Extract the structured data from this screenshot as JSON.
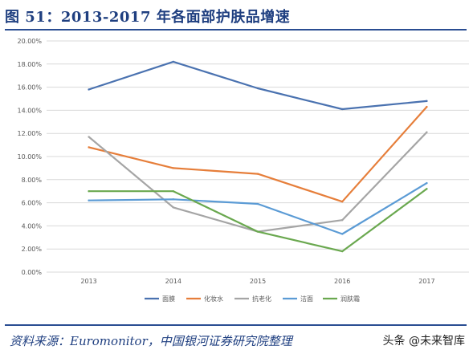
{
  "title": "图 51：2013-2017 年各面部护肤品增速",
  "source_note": "资料来源：Euromonitor，中国银河证券研究院整理",
  "watermark": "头条 @未来智库",
  "chart_data": {
    "type": "line",
    "title": "",
    "xlabel": "",
    "ylabel": "",
    "x": [
      "2013",
      "2014",
      "2015",
      "2016",
      "2017"
    ],
    "ylim": [
      0,
      20
    ],
    "y_ticks": [
      0,
      2,
      4,
      6,
      8,
      10,
      12,
      14,
      16,
      18,
      20
    ],
    "y_tick_labels": [
      "0.00%",
      "2.00%",
      "4.00%",
      "6.00%",
      "8.00%",
      "10.00%",
      "12.00%",
      "14.00%",
      "16.00%",
      "18.00%",
      "20.00%"
    ],
    "grid": true,
    "legend_position": "bottom",
    "series": [
      {
        "name": "面膜",
        "color": "#4a72b0",
        "values": [
          15.8,
          18.2,
          15.9,
          14.1,
          14.8
        ]
      },
      {
        "name": "化妆水",
        "color": "#e67e3a",
        "values": [
          10.8,
          9.0,
          8.5,
          6.1,
          14.3
        ]
      },
      {
        "name": "抗老化",
        "color": "#a5a5a5",
        "values": [
          11.7,
          5.6,
          3.5,
          4.5,
          12.1
        ]
      },
      {
        "name": "洁面",
        "color": "#5b9bd5",
        "values": [
          6.2,
          6.3,
          5.9,
          3.3,
          7.7
        ]
      },
      {
        "name": "润肤霜",
        "color": "#6aa84f",
        "values": [
          7.0,
          7.0,
          3.5,
          1.8,
          7.2
        ]
      }
    ]
  }
}
